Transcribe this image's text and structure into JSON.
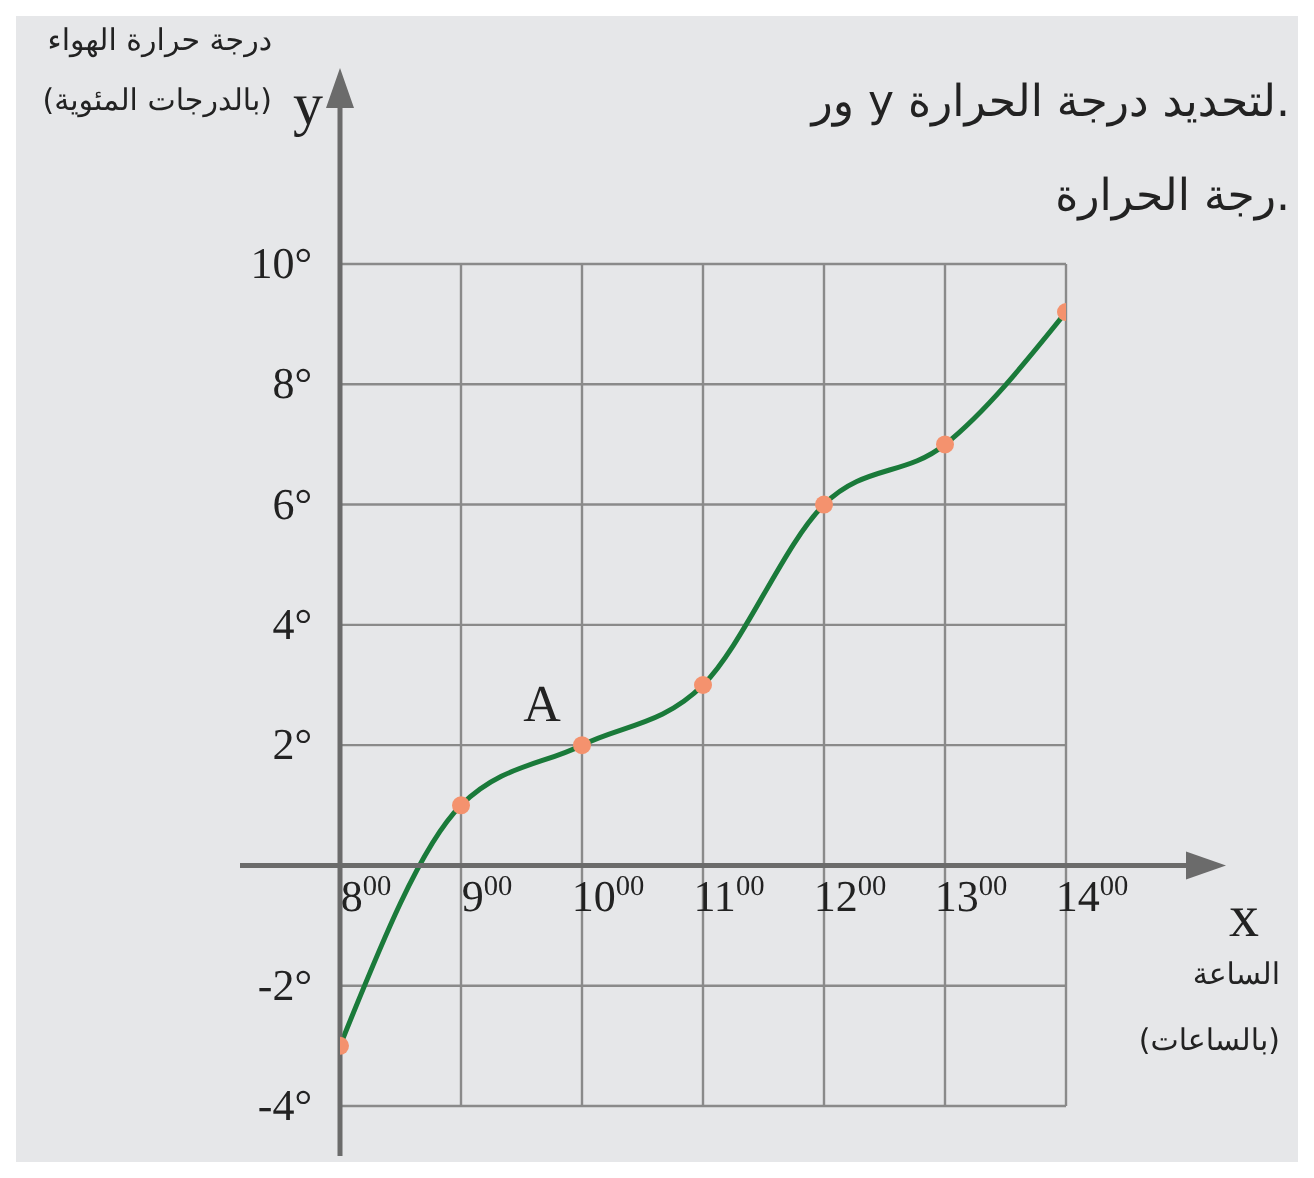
{
  "chart_data": {
    "type": "line",
    "ylabel": "درجة حرارة الهواء\n(بالدرجات المئوية)",
    "xlabel": "الساعة\n(بالساعات)",
    "categories": [
      "8$^{00}$",
      "9$^{00}$",
      "10$^{00}$",
      "11$^{00}$",
      "12$^{00}$",
      "13$^{00}$",
      "14$^{00}$"
    ],
    "series": [
      {
        "color": "#1a7a3a",
        "colors": [
          "#f4926e",
          "#f4926e",
          "#f4926e",
          "#f4926e",
          "#f4926e",
          "#f4926e",
          "#f4926e"
        ],
        "values": [
          -3,
          1,
          2,
          3,
          6,
          7,
          9.2
        ]
      }
    ],
    "ylim": [
      -4,
      10
    ],
    "yticks": [
      {
        "value": -4,
        "label": "-4°"
      },
      {
        "value": -2,
        "label": "-2°"
      },
      {
        "value": 0,
        "label": null
      },
      {
        "value": 2,
        "label": "2°"
      },
      {
        "value": 4,
        "label": "4°"
      },
      {
        "value": 6,
        "label": "6°"
      },
      {
        "value": 8,
        "label": "8°"
      },
      {
        "value": 10,
        "label": "10°"
      }
    ],
    "grid": true,
    "marker": "circle",
    "line_style": "solid",
    "annotations": [
      {
        "text": "A",
        "x": "10$^{00}$",
        "y": 2
      },
      "y",
      "x",
      "ور y لتحديد درجة الحرارة.",
      "رجة الحرارة."
    ]
  }
}
